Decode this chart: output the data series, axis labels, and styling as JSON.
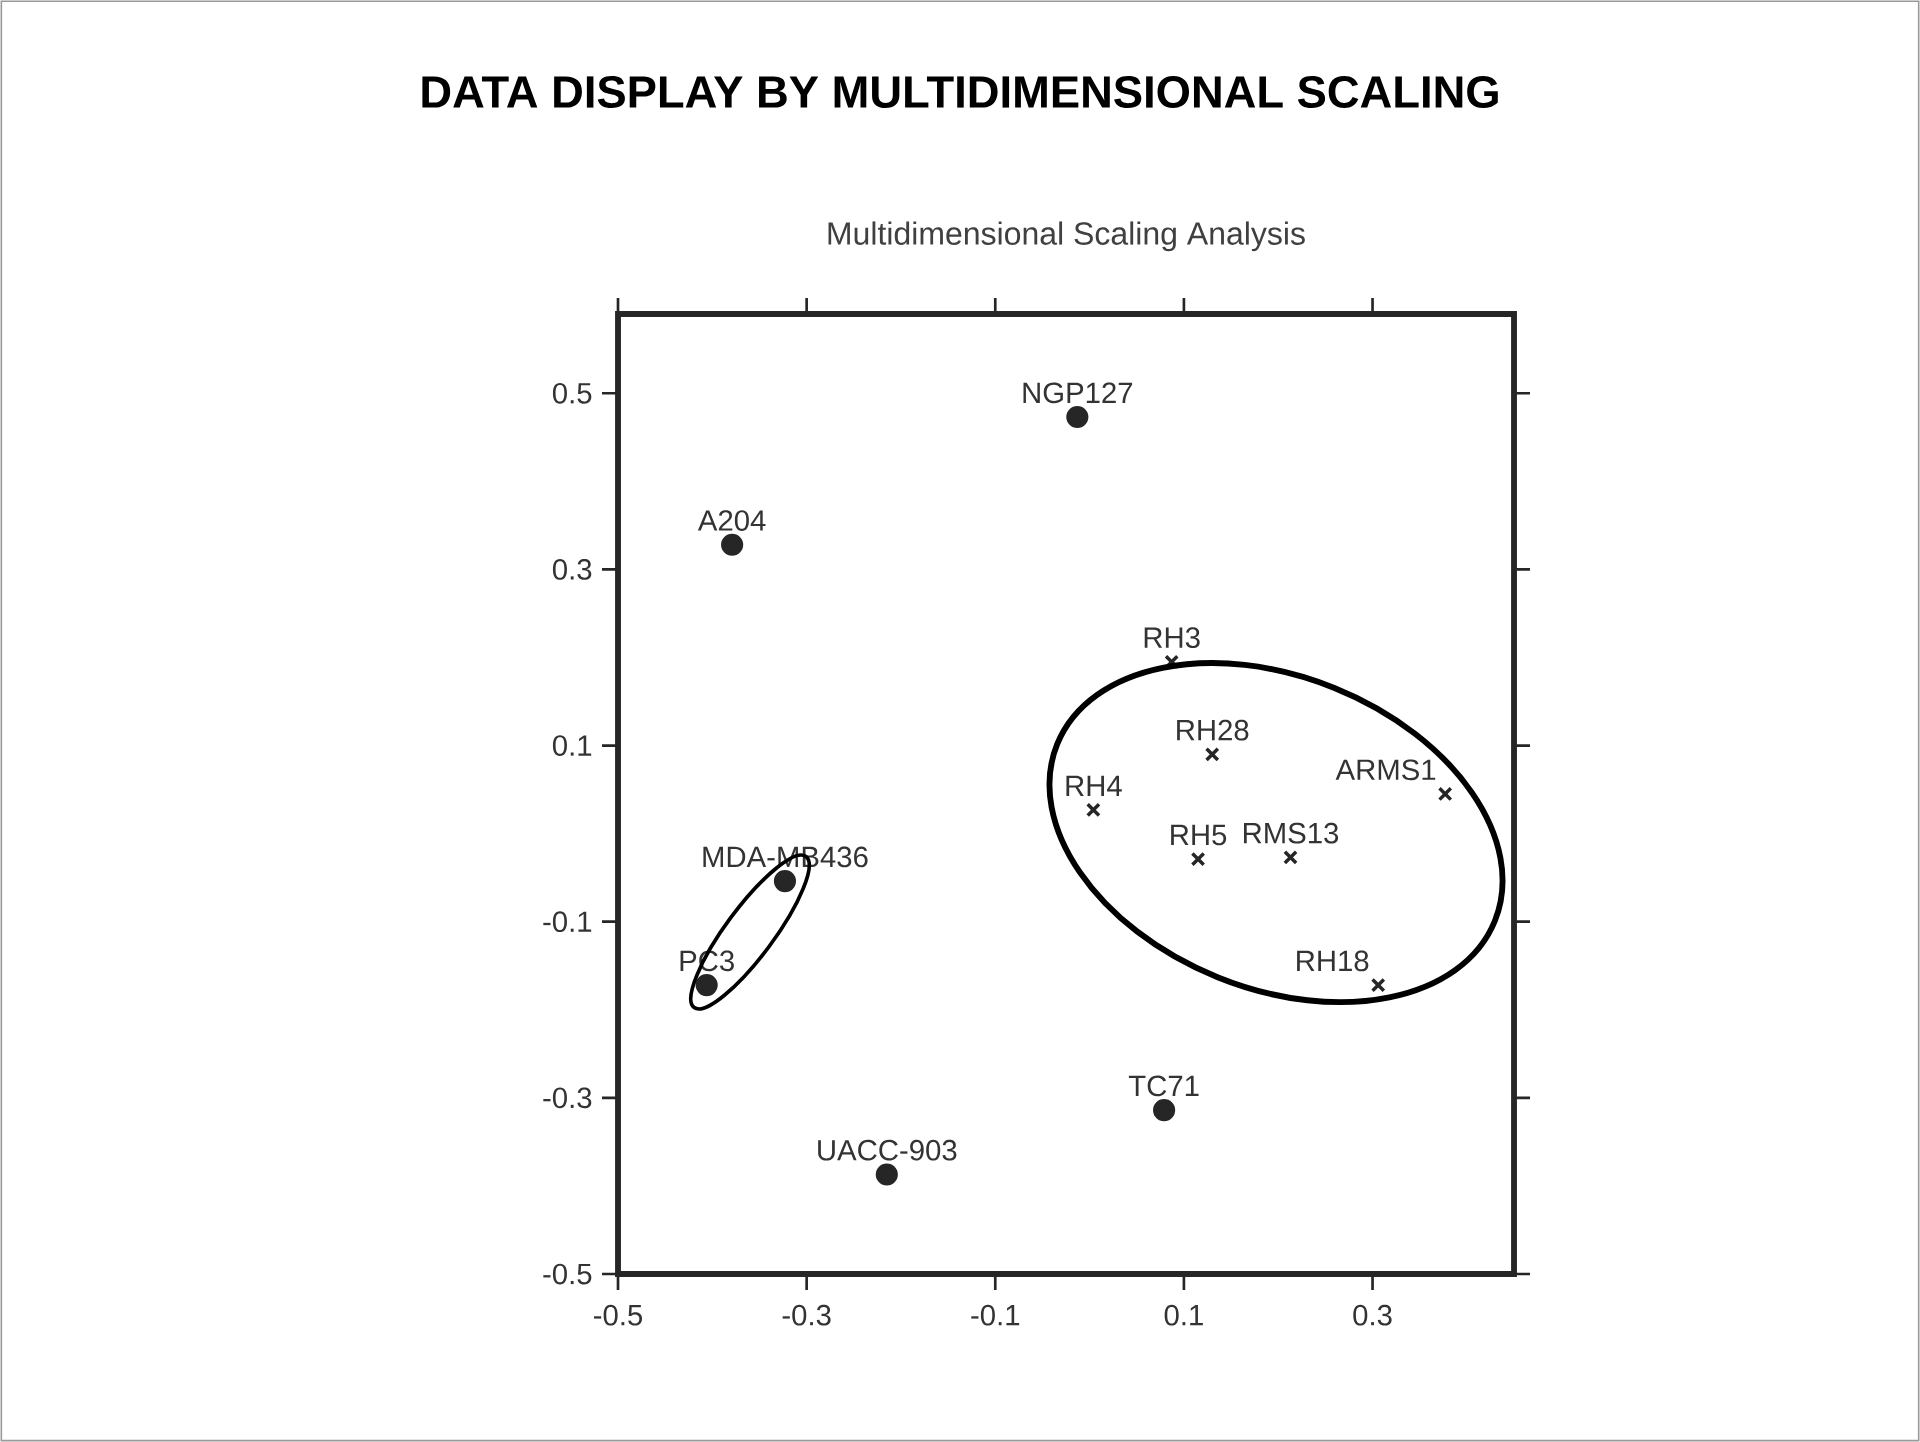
{
  "chart_data": {
    "type": "scatter",
    "title": "DATA DISPLAY BY MULTIDIMENSIONAL SCALING",
    "subtitle": "Multidimensional Scaling Analysis",
    "xlim": [
      -0.5,
      0.45
    ],
    "ylim": [
      -0.5,
      0.59
    ],
    "xticks": [
      -0.5,
      -0.3,
      -0.1,
      0.1,
      0.3
    ],
    "yticks": [
      -0.5,
      -0.3,
      -0.1,
      0.1,
      0.3,
      0.5
    ],
    "grid": false,
    "series": [
      {
        "marker": "circle",
        "color": "#262626",
        "x": [
          -0.013,
          -0.379,
          -0.323,
          -0.406,
          -0.215,
          0.079
        ],
        "values": [
          0.473,
          0.328,
          -0.054,
          -0.172,
          -0.387,
          -0.314
        ]
      },
      {
        "marker": "cross",
        "color": "#262626",
        "x": [
          0.087,
          0.13,
          0.004,
          0.377,
          0.115,
          0.213,
          0.306
        ],
        "values": [
          0.195,
          0.09,
          0.027,
          0.045,
          -0.029,
          -0.027,
          -0.172
        ]
      }
    ],
    "annotations": [
      {
        "text": "NGP127",
        "x": -0.013,
        "y": 0.473
      },
      {
        "text": "A204",
        "x": -0.379,
        "y": 0.328
      },
      {
        "text": "MDA-MB436",
        "x": -0.323,
        "y": -0.054
      },
      {
        "text": "PC3",
        "x": -0.406,
        "y": -0.172
      },
      {
        "text": "UACC-903",
        "x": -0.215,
        "y": -0.387
      },
      {
        "text": "TC71",
        "x": 0.079,
        "y": -0.314
      },
      {
        "text": "RH3",
        "x": 0.087,
        "y": 0.195
      },
      {
        "text": "RH28",
        "x": 0.13,
        "y": 0.09
      },
      {
        "text": "RH4",
        "x": 0.004,
        "y": 0.027
      },
      {
        "text": "ARMS1",
        "x": 0.377,
        "y": 0.045
      },
      {
        "text": "RH5",
        "x": 0.115,
        "y": -0.029
      },
      {
        "text": "RMS13",
        "x": 0.213,
        "y": -0.027
      },
      {
        "text": "RH18",
        "x": 0.306,
        "y": -0.172
      }
    ]
  }
}
